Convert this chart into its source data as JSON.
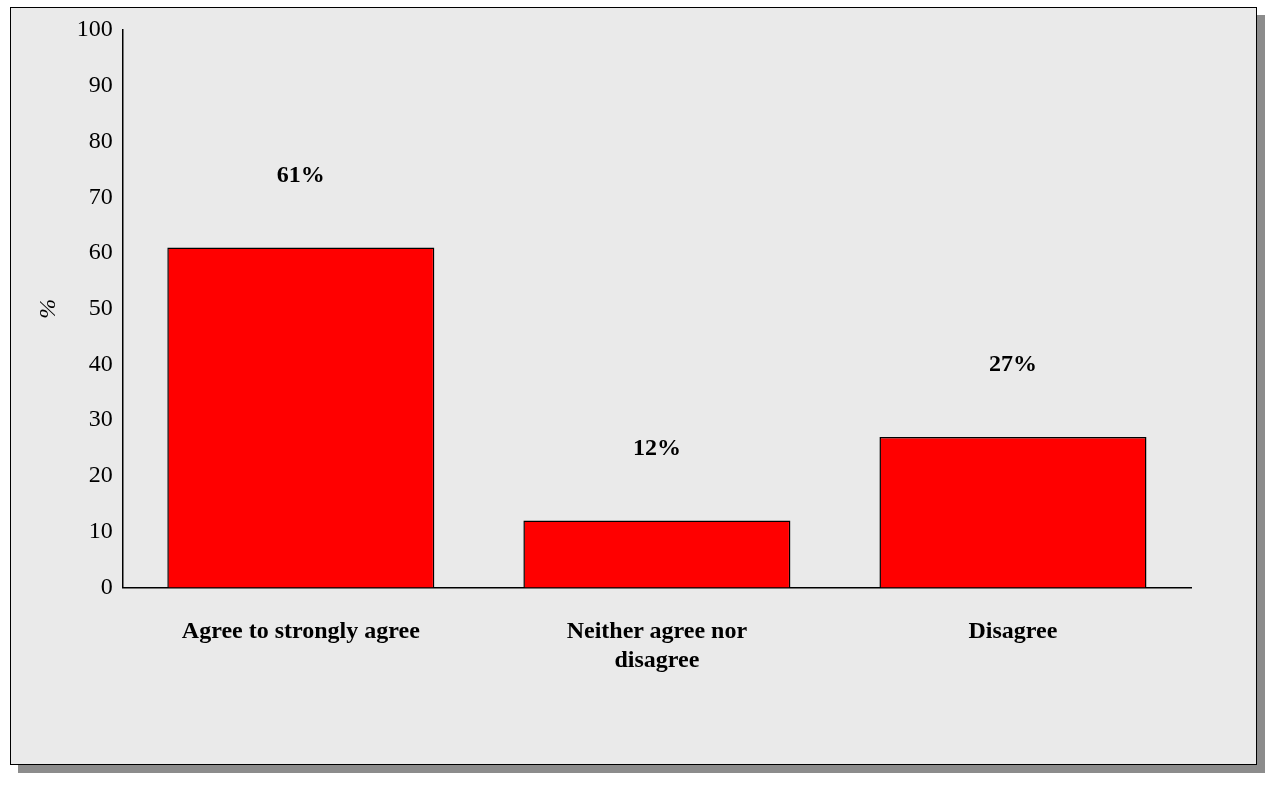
{
  "chart_data": {
    "type": "bar",
    "ylabel": "%",
    "categories": [
      "Agree to strongly agree",
      "Neither agree nor disagree",
      "Disagree"
    ],
    "values": [
      61,
      12,
      27
    ],
    "color": "#ff0000",
    "value_labels": [
      "61%",
      "12%",
      "27%"
    ],
    "ylim": [
      0,
      100
    ],
    "yticks": [
      0,
      10,
      20,
      30,
      40,
      50,
      60,
      70,
      80,
      90,
      100
    ],
    "grid": false,
    "legend": false
  }
}
